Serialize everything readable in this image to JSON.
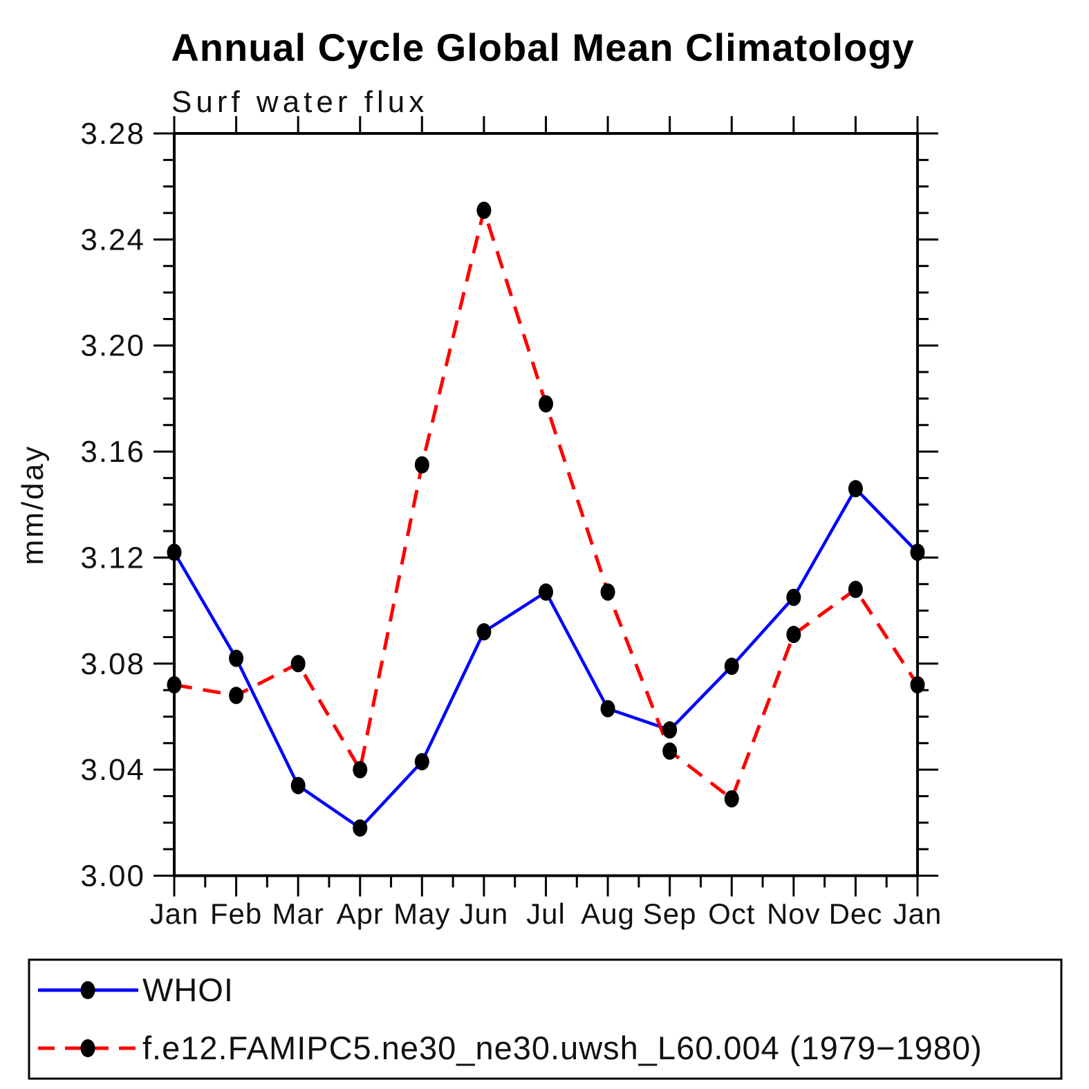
{
  "chart": {
    "title": "Annual Cycle Global Mean Climatology",
    "subtitle": "Surf water flux",
    "ylabel": "mm/day"
  },
  "chart_data": {
    "type": "line",
    "categories": [
      "Jan",
      "Feb",
      "Mar",
      "Apr",
      "May",
      "Jun",
      "Jul",
      "Aug",
      "Sep",
      "Oct",
      "Nov",
      "Dec",
      "Jan"
    ],
    "series": [
      {
        "name": "WHOI",
        "color": "#0000ff",
        "style": "solid",
        "marker": "filled-circle",
        "marker_color": "#000000",
        "values": [
          3.122,
          3.082,
          3.034,
          3.018,
          3.043,
          3.092,
          3.107,
          3.063,
          3.055,
          3.079,
          3.105,
          3.146,
          3.122
        ]
      },
      {
        "name": "f.e12.FAMIPC5.ne30_ne30.uwsh_L60.004 (1979−1980)",
        "color": "#ff0000",
        "style": "dashed",
        "marker": "filled-circle",
        "marker_color": "#000000",
        "values": [
          3.072,
          3.068,
          3.08,
          3.04,
          3.155,
          3.251,
          3.178,
          3.107,
          3.047,
          3.029,
          3.091,
          3.108,
          3.072
        ]
      }
    ],
    "ylim": [
      3.0,
      3.28
    ],
    "ytick_step": 0.04,
    "yminor_step": 0.01,
    "yticks": [
      "3.00",
      "3.04",
      "3.08",
      "3.12",
      "3.16",
      "3.20",
      "3.24",
      "3.28"
    ],
    "xlabel": "",
    "ylabel": "mm/day",
    "grid": false,
    "legend_position": "bottom"
  }
}
